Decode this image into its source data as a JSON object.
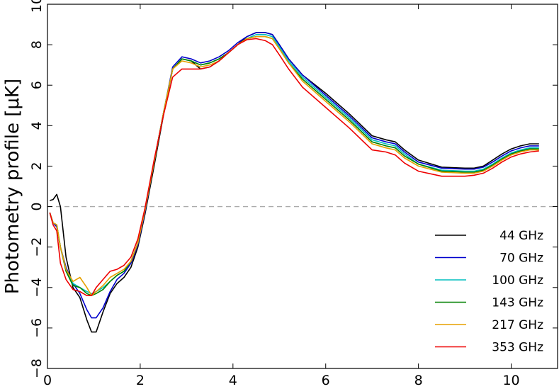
{
  "chart_data": {
    "type": "line",
    "title": "",
    "xlabel": "",
    "ylabel": "Photometry profile [μK]",
    "xlim": [
      0,
      11
    ],
    "ylim": [
      -8,
      10
    ],
    "x_ticks": [
      0,
      2,
      4,
      6,
      8,
      10
    ],
    "y_ticks": [
      -8,
      -6,
      -4,
      -2,
      0,
      2,
      4,
      6,
      8,
      10
    ],
    "y_tick_labels": [
      "−8",
      "−6",
      "−4",
      "−2",
      "0",
      "2",
      "4",
      "6",
      "8",
      "10"
    ],
    "grid": false,
    "legend_position": "lower-right",
    "reference_line": {
      "y": 0,
      "style": "dashed",
      "color": "#aaaaaa"
    },
    "series": [
      {
        "name": "44 GHz",
        "color": "#000000",
        "x": [
          0.05,
          0.12,
          0.2,
          0.28,
          0.4,
          0.55,
          0.7,
          0.85,
          0.95,
          1.05,
          1.2,
          1.35,
          1.5,
          1.65,
          1.8,
          1.95,
          2.1,
          2.3,
          2.5,
          2.7,
          2.9,
          3.1,
          3.3,
          3.5,
          3.7,
          3.9,
          4.1,
          4.3,
          4.5,
          4.7,
          4.85,
          5.0,
          5.2,
          5.5,
          6.0,
          6.5,
          7.0,
          7.3,
          7.5,
          7.7,
          8.0,
          8.5,
          9.0,
          9.2,
          9.4,
          9.6,
          9.8,
          10.0,
          10.2,
          10.4,
          10.6
        ],
        "y": [
          0.3,
          0.35,
          0.6,
          0.0,
          -2.5,
          -4.0,
          -4.5,
          -5.6,
          -6.2,
          -6.2,
          -5.2,
          -4.3,
          -3.8,
          -3.5,
          -3.0,
          -2.0,
          -0.4,
          2.0,
          4.5,
          6.8,
          7.3,
          7.2,
          6.8,
          6.9,
          7.2,
          7.6,
          8.0,
          8.4,
          8.6,
          8.6,
          8.5,
          8.0,
          7.3,
          6.5,
          5.6,
          4.6,
          3.5,
          3.3,
          3.2,
          2.8,
          2.3,
          1.95,
          1.9,
          1.9,
          2.0,
          2.3,
          2.6,
          2.85,
          3.0,
          3.1,
          3.1
        ]
      },
      {
        "name": "70 GHz",
        "color": "#0000cc",
        "x": [
          0.05,
          0.12,
          0.2,
          0.28,
          0.4,
          0.55,
          0.7,
          0.85,
          0.95,
          1.05,
          1.2,
          1.35,
          1.5,
          1.65,
          1.8,
          1.95,
          2.1,
          2.3,
          2.5,
          2.7,
          2.9,
          3.1,
          3.3,
          3.5,
          3.7,
          3.9,
          4.1,
          4.3,
          4.5,
          4.7,
          4.85,
          5.0,
          5.2,
          5.5,
          6.0,
          6.5,
          7.0,
          7.3,
          7.5,
          7.7,
          8.0,
          8.5,
          9.0,
          9.2,
          9.4,
          9.6,
          9.8,
          10.0,
          10.2,
          10.4,
          10.6
        ],
        "y": [
          -0.3,
          -0.8,
          -1.0,
          -2.0,
          -3.0,
          -3.8,
          -4.3,
          -5.1,
          -5.5,
          -5.5,
          -5.0,
          -4.2,
          -3.6,
          -3.3,
          -2.8,
          -1.9,
          -0.3,
          2.2,
          4.6,
          6.9,
          7.4,
          7.3,
          7.1,
          7.2,
          7.4,
          7.7,
          8.1,
          8.4,
          8.6,
          8.6,
          8.5,
          8.0,
          7.3,
          6.5,
          5.5,
          4.5,
          3.4,
          3.2,
          3.1,
          2.7,
          2.2,
          1.9,
          1.85,
          1.85,
          1.95,
          2.2,
          2.5,
          2.75,
          2.9,
          3.0,
          3.0
        ]
      },
      {
        "name": "100 GHz",
        "color": "#00bfbf",
        "x": [
          0.05,
          0.12,
          0.2,
          0.28,
          0.4,
          0.55,
          0.7,
          0.85,
          0.95,
          1.05,
          1.2,
          1.35,
          1.5,
          1.65,
          1.8,
          1.95,
          2.1,
          2.3,
          2.5,
          2.7,
          2.9,
          3.1,
          3.3,
          3.5,
          3.7,
          3.9,
          4.1,
          4.3,
          4.5,
          4.7,
          4.85,
          5.0,
          5.2,
          5.5,
          6.0,
          6.5,
          7.0,
          7.3,
          7.5,
          7.7,
          8.0,
          8.5,
          9.0,
          9.2,
          9.4,
          9.6,
          9.8,
          10.0,
          10.2,
          10.4,
          10.6
        ],
        "y": [
          -0.3,
          -0.8,
          -0.9,
          -2.0,
          -3.1,
          -3.8,
          -4.0,
          -4.2,
          -4.3,
          -4.2,
          -4.0,
          -3.7,
          -3.4,
          -3.2,
          -2.7,
          -1.8,
          -0.2,
          2.2,
          4.6,
          6.8,
          7.3,
          7.2,
          7.0,
          7.1,
          7.3,
          7.6,
          8.0,
          8.3,
          8.5,
          8.5,
          8.4,
          7.9,
          7.2,
          6.4,
          5.4,
          4.4,
          3.3,
          3.1,
          3.0,
          2.6,
          2.1,
          1.8,
          1.75,
          1.75,
          1.85,
          2.1,
          2.4,
          2.65,
          2.8,
          2.9,
          2.9
        ]
      },
      {
        "name": "143 GHz",
        "color": "#008000",
        "x": [
          0.05,
          0.12,
          0.2,
          0.28,
          0.4,
          0.55,
          0.7,
          0.85,
          0.95,
          1.05,
          1.2,
          1.35,
          1.5,
          1.65,
          1.8,
          1.95,
          2.1,
          2.3,
          2.5,
          2.7,
          2.9,
          3.1,
          3.3,
          3.5,
          3.7,
          3.9,
          4.1,
          4.3,
          4.5,
          4.7,
          4.85,
          5.0,
          5.2,
          5.5,
          6.0,
          6.5,
          7.0,
          7.3,
          7.5,
          7.7,
          8.0,
          8.5,
          9.0,
          9.2,
          9.4,
          9.6,
          9.8,
          10.0,
          10.2,
          10.4,
          10.6
        ],
        "y": [
          -0.3,
          -0.8,
          -0.9,
          -2.0,
          -3.2,
          -3.9,
          -4.0,
          -4.3,
          -4.4,
          -4.3,
          -4.1,
          -3.7,
          -3.4,
          -3.2,
          -2.7,
          -1.8,
          -0.2,
          2.2,
          4.6,
          6.8,
          7.3,
          7.2,
          7.0,
          7.1,
          7.3,
          7.6,
          8.0,
          8.3,
          8.4,
          8.4,
          8.3,
          7.8,
          7.1,
          6.3,
          5.3,
          4.3,
          3.2,
          3.0,
          2.9,
          2.5,
          2.1,
          1.75,
          1.7,
          1.7,
          1.8,
          2.05,
          2.35,
          2.6,
          2.75,
          2.85,
          2.85
        ]
      },
      {
        "name": "217 GHz",
        "color": "#e6a000",
        "x": [
          0.05,
          0.12,
          0.2,
          0.28,
          0.4,
          0.55,
          0.7,
          0.85,
          0.95,
          1.05,
          1.2,
          1.35,
          1.5,
          1.65,
          1.8,
          1.95,
          2.1,
          2.3,
          2.5,
          2.7,
          2.9,
          3.1,
          3.3,
          3.5,
          3.7,
          3.9,
          4.1,
          4.3,
          4.5,
          4.7,
          4.85,
          5.0,
          5.2,
          5.5,
          6.0,
          6.5,
          7.0,
          7.3,
          7.5,
          7.7,
          8.0,
          8.5,
          9.0,
          9.2,
          9.4,
          9.6,
          9.8,
          10.0,
          10.2,
          10.4,
          10.6
        ],
        "y": [
          -0.3,
          -0.8,
          -0.9,
          -2.0,
          -3.1,
          -3.7,
          -3.5,
          -4.0,
          -4.4,
          -4.2,
          -3.9,
          -3.5,
          -3.3,
          -3.1,
          -2.7,
          -1.8,
          -0.2,
          2.2,
          4.6,
          6.8,
          7.2,
          7.1,
          6.9,
          7.0,
          7.2,
          7.6,
          8.0,
          8.3,
          8.4,
          8.4,
          8.3,
          7.8,
          7.1,
          6.2,
          5.2,
          4.2,
          3.1,
          2.9,
          2.8,
          2.4,
          2.0,
          1.7,
          1.65,
          1.65,
          1.75,
          2.0,
          2.3,
          2.55,
          2.7,
          2.8,
          2.8
        ]
      },
      {
        "name": "353 GHz",
        "color": "#ee0000",
        "x": [
          0.05,
          0.12,
          0.2,
          0.28,
          0.4,
          0.55,
          0.7,
          0.85,
          0.95,
          1.05,
          1.2,
          1.35,
          1.5,
          1.65,
          1.8,
          1.95,
          2.1,
          2.3,
          2.5,
          2.7,
          2.9,
          3.1,
          3.3,
          3.5,
          3.7,
          3.9,
          4.1,
          4.3,
          4.5,
          4.7,
          4.85,
          5.0,
          5.2,
          5.5,
          6.0,
          6.5,
          7.0,
          7.3,
          7.5,
          7.7,
          8.0,
          8.5,
          9.0,
          9.2,
          9.4,
          9.6,
          9.8,
          10.0,
          10.2,
          10.4,
          10.6
        ],
        "y": [
          -0.3,
          -0.9,
          -1.2,
          -2.8,
          -3.6,
          -4.1,
          -4.2,
          -4.4,
          -4.4,
          -4.0,
          -3.6,
          -3.2,
          -3.1,
          -2.9,
          -2.5,
          -1.6,
          -0.1,
          2.3,
          4.5,
          6.4,
          6.8,
          6.8,
          6.8,
          6.9,
          7.2,
          7.6,
          8.0,
          8.25,
          8.3,
          8.2,
          8.0,
          7.5,
          6.8,
          5.9,
          4.9,
          3.9,
          2.8,
          2.7,
          2.55,
          2.15,
          1.75,
          1.5,
          1.5,
          1.55,
          1.65,
          1.9,
          2.2,
          2.45,
          2.6,
          2.7,
          2.75
        ]
      }
    ]
  }
}
